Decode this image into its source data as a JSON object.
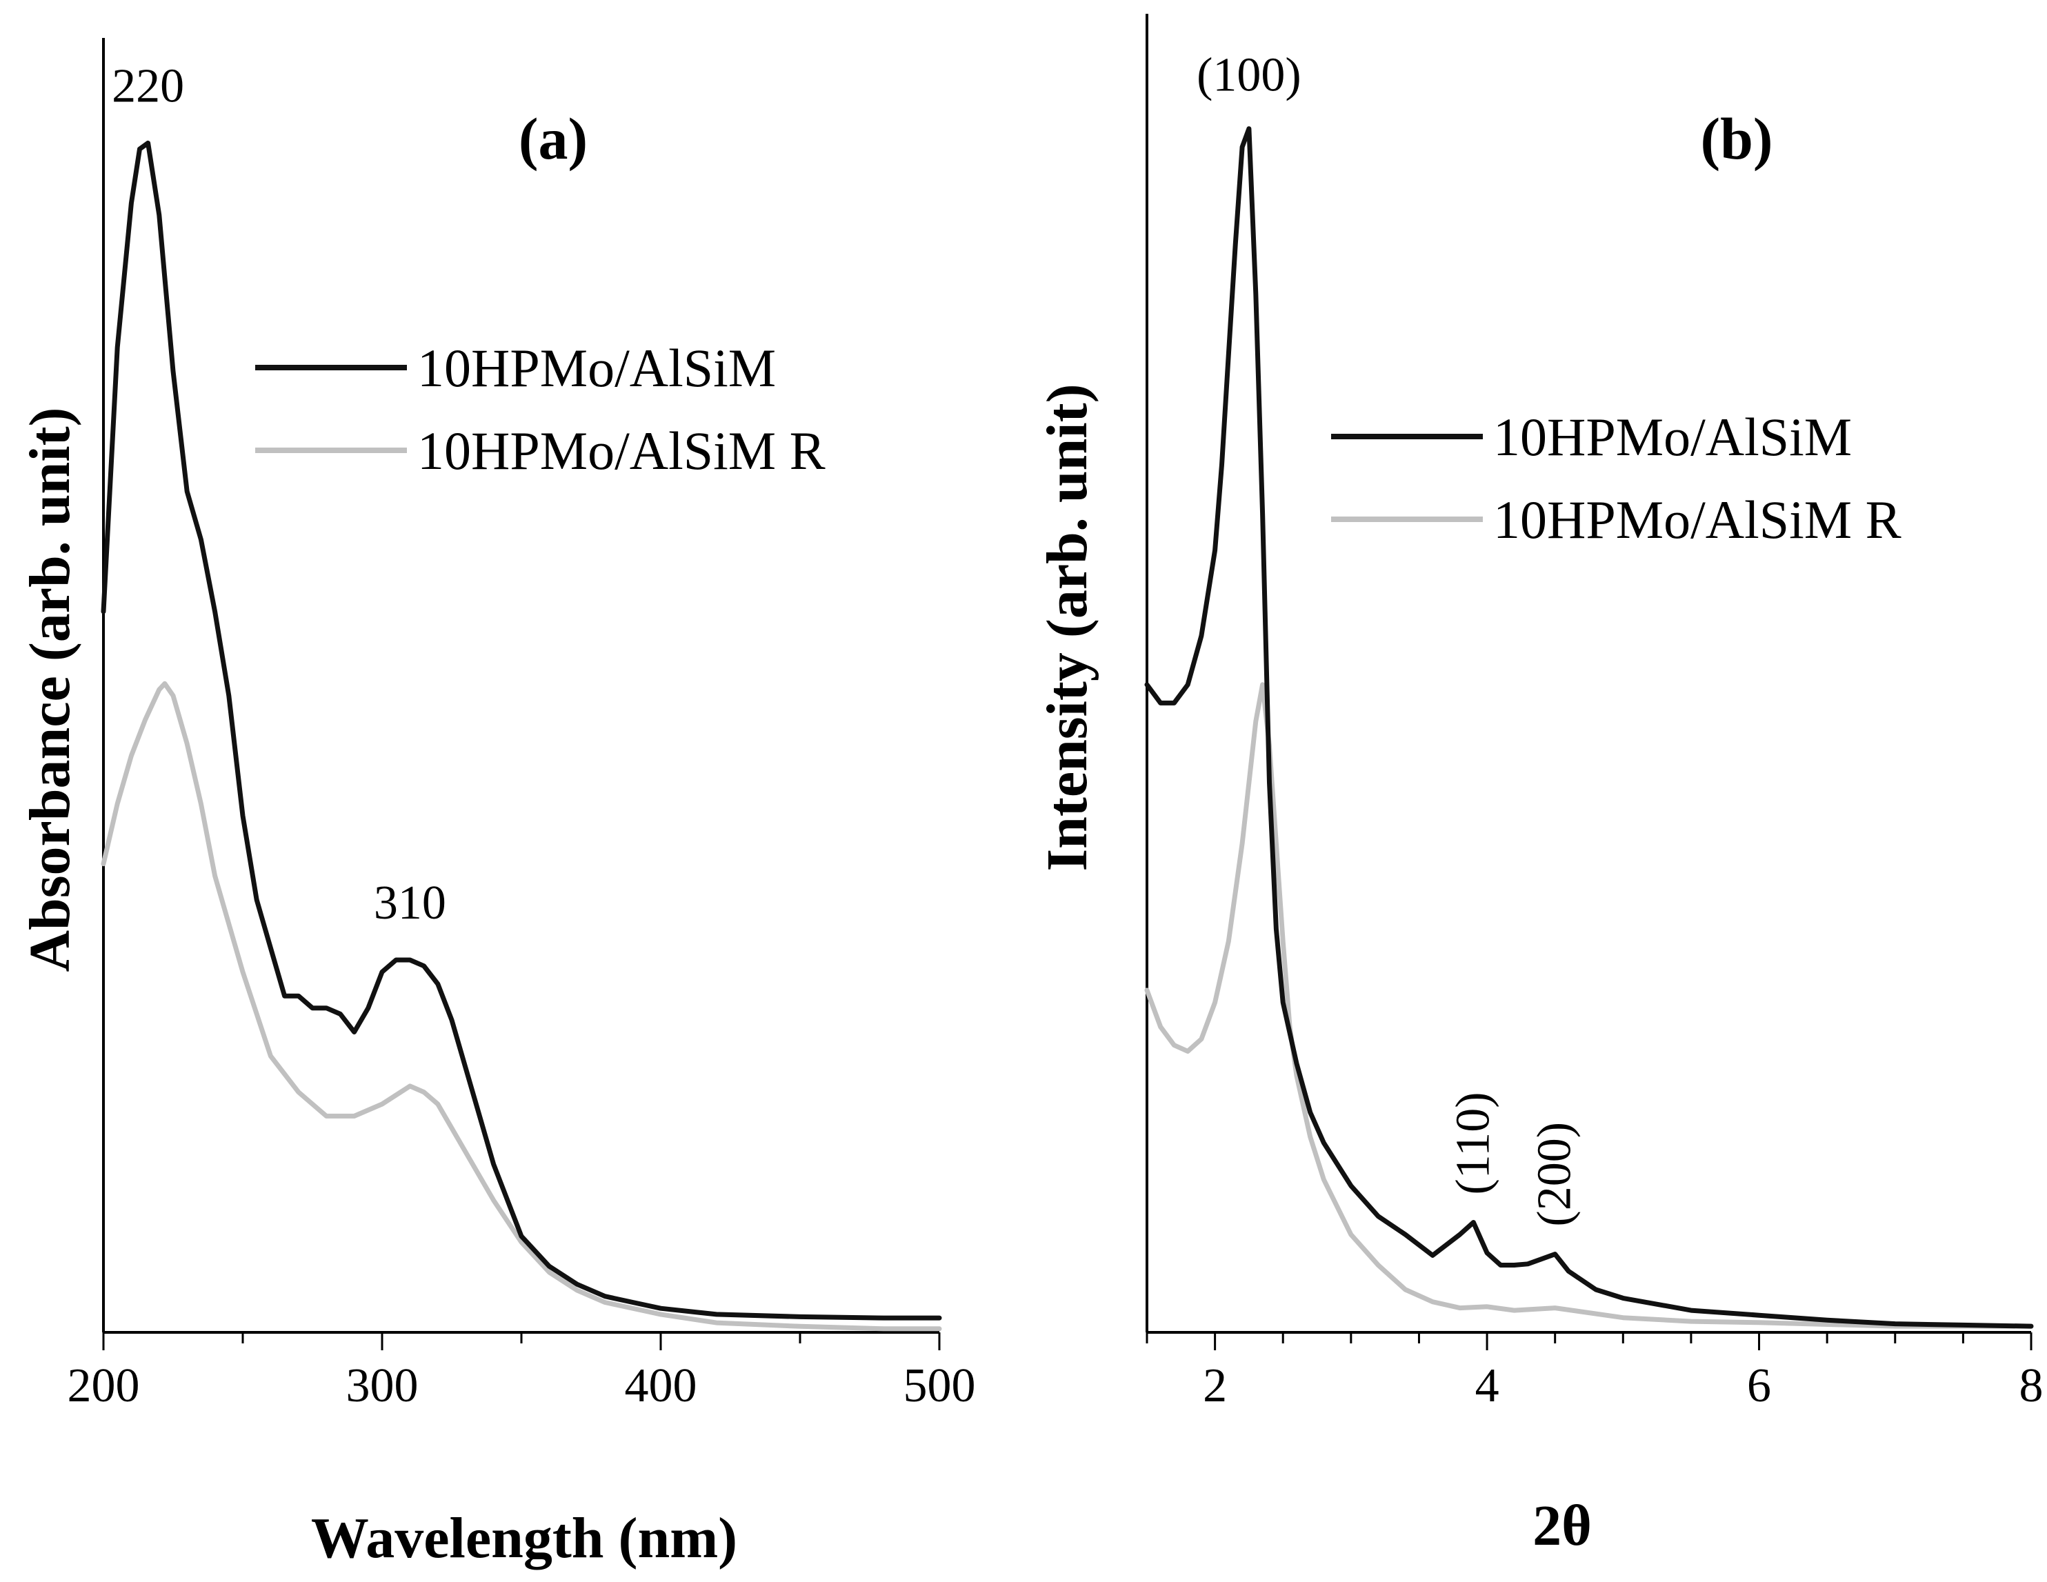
{
  "colors": {
    "series_dark": "#111111",
    "series_light": "#c0c0c0"
  },
  "chart_data": [
    {
      "type": "line",
      "panel_label": "(a)",
      "xlabel": "Wavelength (nm)",
      "ylabel": "Absorbance (arb. unit)",
      "xlim": [
        200,
        500
      ],
      "ylim": [
        0,
        100
      ],
      "xticks": [
        200,
        300,
        400,
        500
      ],
      "xtick_labels": [
        "200",
        "300",
        "400",
        "500"
      ],
      "y_tick_labels": "none",
      "legend_position": "upper-right",
      "series": [
        {
          "name": "10HPMo/AlSiM",
          "color": "#111111",
          "x": [
            200,
            205,
            210,
            213,
            216,
            220,
            225,
            230,
            235,
            240,
            245,
            250,
            255,
            260,
            265,
            270,
            275,
            280,
            285,
            290,
            295,
            300,
            305,
            310,
            315,
            320,
            325,
            330,
            335,
            340,
            345,
            350,
            360,
            370,
            380,
            390,
            400,
            420,
            450,
            480,
            500
          ],
          "y": [
            60,
            82,
            94,
            98.5,
            99,
            93,
            80,
            70,
            66,
            60,
            53,
            43,
            36,
            32,
            28,
            28,
            27,
            27,
            26.5,
            25,
            27,
            30,
            31,
            31,
            30.5,
            29,
            26,
            22,
            18,
            14,
            11,
            8,
            5.5,
            4,
            3,
            2.5,
            2,
            1.5,
            1.3,
            1.2,
            1.2
          ]
        },
        {
          "name": "10HPMo/AlSiM R",
          "color": "#c0c0c0",
          "x": [
            200,
            205,
            210,
            215,
            220,
            222,
            225,
            230,
            235,
            240,
            250,
            260,
            270,
            280,
            290,
            300,
            310,
            315,
            320,
            330,
            340,
            350,
            360,
            370,
            380,
            400,
            420,
            450,
            480,
            500
          ],
          "y": [
            39,
            44,
            48,
            51,
            53.5,
            54,
            53,
            49,
            44,
            38,
            30,
            23,
            20,
            18,
            18,
            19,
            20.5,
            20,
            19,
            15,
            11,
            7.5,
            5,
            3.5,
            2.5,
            1.5,
            0.8,
            0.5,
            0.3,
            0.3
          ]
        }
      ],
      "annotations": [
        {
          "text": "220",
          "x": 216,
          "y": 99
        },
        {
          "text": "310",
          "x": 310,
          "y": 31
        }
      ]
    },
    {
      "type": "line",
      "panel_label": "(b)",
      "xlabel": "2θ",
      "ylabel": "Intensity (arb. unit)",
      "xlim": [
        1.5,
        8
      ],
      "ylim": [
        0,
        100
      ],
      "xticks": [
        2,
        4,
        6,
        8
      ],
      "xtick_labels": [
        "2",
        "4",
        "6",
        "8"
      ],
      "y_tick_labels": "none",
      "legend_position": "upper-right",
      "series": [
        {
          "name": "10HPMo/AlSiM",
          "color": "#111111",
          "x": [
            1.5,
            1.6,
            1.7,
            1.8,
            1.9,
            2.0,
            2.05,
            2.1,
            2.15,
            2.2,
            2.25,
            2.3,
            2.35,
            2.4,
            2.45,
            2.5,
            2.6,
            2.7,
            2.8,
            3.0,
            3.2,
            3.4,
            3.6,
            3.8,
            3.9,
            4.0,
            4.1,
            4.2,
            4.3,
            4.4,
            4.5,
            4.6,
            4.8,
            5.0,
            5.5,
            6.0,
            6.5,
            7.0,
            7.5,
            8.0
          ],
          "y": [
            53,
            51.5,
            51.5,
            53,
            57,
            64,
            71,
            80,
            89,
            97,
            98.5,
            85,
            67,
            45,
            33,
            27,
            22,
            18,
            15.5,
            12,
            9.5,
            8,
            6.3,
            8,
            9,
            6.5,
            5.5,
            5.5,
            5.6,
            6,
            6.4,
            5,
            3.5,
            2.8,
            1.8,
            1.4,
            1,
            0.7,
            0.6,
            0.5
          ]
        },
        {
          "name": "10HPMo/AlSiM R",
          "color": "#c0c0c0",
          "x": [
            1.5,
            1.6,
            1.7,
            1.8,
            1.9,
            2.0,
            2.1,
            2.2,
            2.3,
            2.35,
            2.4,
            2.45,
            2.5,
            2.55,
            2.6,
            2.7,
            2.8,
            3.0,
            3.2,
            3.4,
            3.6,
            3.8,
            4.0,
            4.2,
            4.5,
            5.0,
            5.5,
            6.0,
            7.0,
            8.0
          ],
          "y": [
            28,
            25,
            23.5,
            23,
            24,
            27,
            32,
            40,
            50,
            53,
            48,
            40,
            32,
            25,
            21,
            16,
            12.5,
            8,
            5.5,
            3.5,
            2.5,
            2,
            2.1,
            1.8,
            2,
            1.2,
            0.9,
            0.8,
            0.5,
            0.5
          ]
        }
      ],
      "annotations": [
        {
          "text": "(100)",
          "x": 2.25,
          "y": 98.5
        },
        {
          "text": "(110)",
          "x": 3.9,
          "y": 9
        },
        {
          "text": "(200)",
          "x": 4.5,
          "y": 6.4
        }
      ]
    }
  ]
}
